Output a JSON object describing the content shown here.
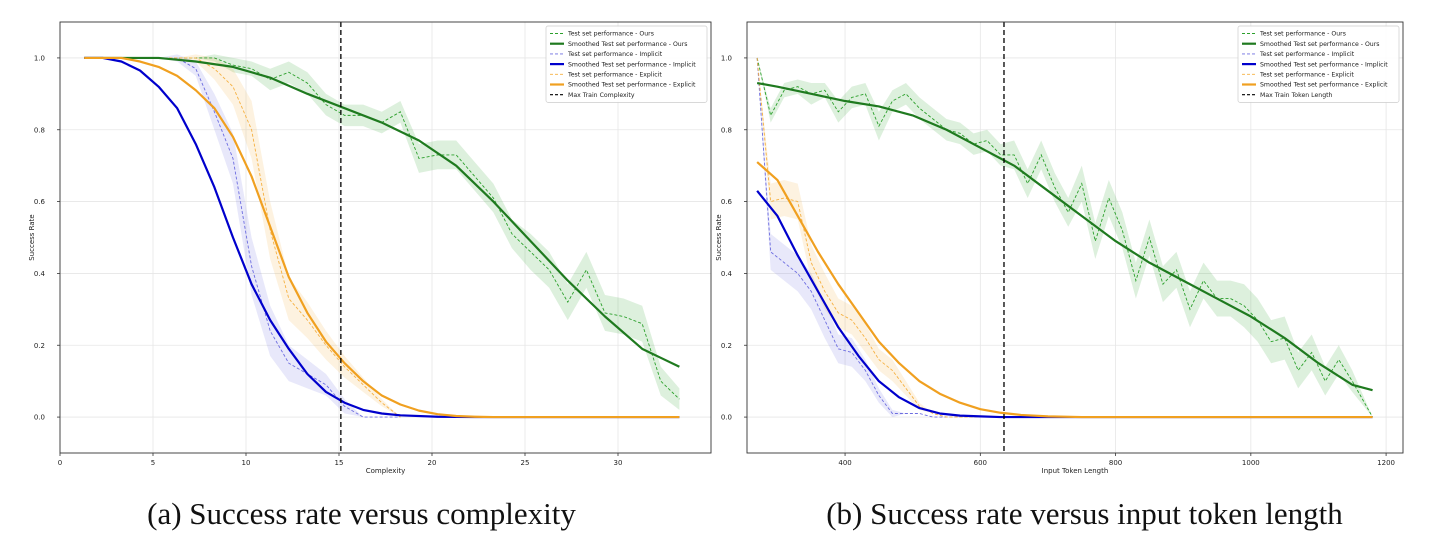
{
  "chart_data": [
    {
      "type": "line",
      "caption": "(a) Success rate versus complexity",
      "xlabel": "Complexity",
      "ylabel": "Success Rate",
      "xlim": [
        0,
        35
      ],
      "ylim": [
        -0.1,
        1.1
      ],
      "xticks": [
        0,
        5,
        10,
        15,
        20,
        25,
        30
      ],
      "yticks": [
        0.0,
        0.2,
        0.4,
        0.6,
        0.8,
        1.0
      ],
      "grid": true,
      "legend_position": "top-right",
      "vline": {
        "x": 15.1,
        "label": "Max Train Complexity",
        "color": "#000000"
      },
      "series": [
        {
          "name": "Test set performance - Ours",
          "style": "raw",
          "color": "#2ca02c",
          "x": [
            1.3,
            2.3,
            3.3,
            4.3,
            5.3,
            6.3,
            7.3,
            8.3,
            9.3,
            10.3,
            11.3,
            12.3,
            13.3,
            14.3,
            15.3,
            16.3,
            17.3,
            18.3,
            19.3,
            20.3,
            21.3,
            22.3,
            23.3,
            24.3,
            25.3,
            26.3,
            27.3,
            28.3,
            29.3,
            30.3,
            31.3,
            32.3,
            33.3
          ],
          "y": [
            1.0,
            1.0,
            1.0,
            1.0,
            1.0,
            1.0,
            1.0,
            1.0,
            0.98,
            0.97,
            0.94,
            0.96,
            0.93,
            0.87,
            0.84,
            0.84,
            0.82,
            0.85,
            0.72,
            0.73,
            0.73,
            0.67,
            0.61,
            0.51,
            0.46,
            0.41,
            0.32,
            0.41,
            0.29,
            0.28,
            0.26,
            0.1,
            0.05
          ],
          "band": [
            0.0,
            0.0,
            0.0,
            0.0,
            0.0,
            0.0,
            0.0,
            0.01,
            0.02,
            0.02,
            0.03,
            0.03,
            0.03,
            0.03,
            0.03,
            0.03,
            0.03,
            0.03,
            0.04,
            0.04,
            0.04,
            0.04,
            0.04,
            0.04,
            0.05,
            0.05,
            0.05,
            0.05,
            0.05,
            0.05,
            0.05,
            0.04,
            0.03
          ]
        },
        {
          "name": "Smoothed Test set performance - Ours",
          "style": "smooth",
          "color": "#1f7a1f",
          "x": [
            1.3,
            3.3,
            5.3,
            7.3,
            9.3,
            11.3,
            13.3,
            15.3,
            17.3,
            19.3,
            21.3,
            23.3,
            25.3,
            27.3,
            29.3,
            31.3,
            32.3,
            33.3
          ],
          "y": [
            1.0,
            1.0,
            1.0,
            0.99,
            0.975,
            0.945,
            0.9,
            0.86,
            0.82,
            0.77,
            0.7,
            0.6,
            0.49,
            0.38,
            0.28,
            0.19,
            0.165,
            0.14
          ]
        },
        {
          "name": "Test set performance - Implicit",
          "style": "raw",
          "color": "#6d6de0",
          "x": [
            1.3,
            2.3,
            3.3,
            4.3,
            5.3,
            6.3,
            7.3,
            8.3,
            9.3,
            10.3,
            11.3,
            12.3,
            13.3,
            14.3,
            15.3,
            16.3,
            17.3,
            18.3
          ],
          "y": [
            1.0,
            1.0,
            1.0,
            1.0,
            1.0,
            1.0,
            0.97,
            0.85,
            0.72,
            0.42,
            0.24,
            0.15,
            0.12,
            0.09,
            0.03,
            0.0,
            0.0,
            0.0
          ],
          "band": [
            0.0,
            0.0,
            0.0,
            0.0,
            0.0,
            0.01,
            0.02,
            0.05,
            0.07,
            0.08,
            0.07,
            0.05,
            0.04,
            0.03,
            0.02,
            0.0,
            0.0,
            0.0
          ]
        },
        {
          "name": "Smoothed Test set performance - Implicit",
          "style": "smooth",
          "color": "#0000cc",
          "x": [
            1.3,
            2.3,
            3.3,
            4.3,
            5.3,
            6.3,
            7.3,
            8.3,
            9.3,
            10.3,
            11.3,
            12.3,
            13.3,
            14.3,
            15.3,
            16.3,
            17.3,
            18.3,
            20.3,
            22.3,
            25.3,
            33.3
          ],
          "y": [
            1.0,
            1.0,
            0.99,
            0.965,
            0.92,
            0.86,
            0.76,
            0.64,
            0.5,
            0.37,
            0.27,
            0.19,
            0.12,
            0.07,
            0.04,
            0.02,
            0.01,
            0.005,
            0.001,
            0.0,
            0.0,
            0.0
          ]
        },
        {
          "name": "Test set performance - Explicit",
          "style": "raw",
          "color": "#f5b041",
          "x": [
            1.3,
            2.3,
            3.3,
            4.3,
            5.3,
            6.3,
            7.3,
            8.3,
            9.3,
            10.3,
            11.3,
            12.3,
            13.3,
            14.3,
            15.3,
            16.3,
            17.3,
            18.3
          ],
          "y": [
            1.0,
            1.0,
            1.0,
            1.0,
            1.0,
            1.0,
            1.0,
            0.97,
            0.92,
            0.8,
            0.52,
            0.33,
            0.27,
            0.2,
            0.14,
            0.09,
            0.04,
            0.0
          ],
          "band": [
            0.0,
            0.0,
            0.0,
            0.0,
            0.0,
            0.0,
            0.01,
            0.03,
            0.05,
            0.08,
            0.08,
            0.06,
            0.05,
            0.04,
            0.03,
            0.02,
            0.01,
            0.0
          ]
        },
        {
          "name": "Smoothed Test set performance - Explicit",
          "style": "smooth",
          "color": "#f0a020",
          "x": [
            1.3,
            2.3,
            3.3,
            4.3,
            5.3,
            6.3,
            7.3,
            8.3,
            9.3,
            10.3,
            11.3,
            12.3,
            13.3,
            14.3,
            15.3,
            16.3,
            17.3,
            18.3,
            19.3,
            20.3,
            21.3,
            22.3,
            23.3,
            25.3,
            33.3
          ],
          "y": [
            1.0,
            1.0,
            1.0,
            0.99,
            0.975,
            0.95,
            0.91,
            0.86,
            0.78,
            0.67,
            0.53,
            0.39,
            0.29,
            0.21,
            0.15,
            0.1,
            0.06,
            0.035,
            0.018,
            0.008,
            0.003,
            0.001,
            0.0,
            0.0,
            0.0
          ]
        }
      ]
    },
    {
      "type": "line",
      "caption": "(b) Success rate versus input token length",
      "xlabel": "Input Token Length",
      "ylabel": "Success Rate",
      "xlim": [
        255,
        1225
      ],
      "ylim": [
        -0.1,
        1.1
      ],
      "xticks": [
        400,
        600,
        800,
        1000,
        1200
      ],
      "yticks": [
        0.0,
        0.2,
        0.4,
        0.6,
        0.8,
        1.0
      ],
      "grid": true,
      "legend_position": "top-right",
      "vline": {
        "x": 635,
        "label": "Max Train Token Length",
        "color": "#000000"
      },
      "series": [
        {
          "name": "Test set performance - Ours",
          "style": "raw",
          "color": "#2ca02c",
          "x": [
            270,
            290,
            310,
            330,
            350,
            370,
            390,
            410,
            430,
            450,
            470,
            490,
            510,
            530,
            550,
            570,
            590,
            610,
            630,
            650,
            670,
            690,
            710,
            730,
            750,
            770,
            790,
            810,
            830,
            850,
            870,
            890,
            910,
            930,
            950,
            970,
            990,
            1010,
            1030,
            1050,
            1070,
            1090,
            1110,
            1130,
            1150,
            1180
          ],
          "y": [
            1.0,
            0.84,
            0.91,
            0.92,
            0.9,
            0.91,
            0.85,
            0.89,
            0.9,
            0.81,
            0.88,
            0.9,
            0.86,
            0.83,
            0.8,
            0.79,
            0.76,
            0.77,
            0.73,
            0.73,
            0.65,
            0.73,
            0.64,
            0.57,
            0.65,
            0.49,
            0.61,
            0.52,
            0.38,
            0.5,
            0.37,
            0.41,
            0.3,
            0.38,
            0.33,
            0.33,
            0.31,
            0.27,
            0.21,
            0.22,
            0.13,
            0.18,
            0.1,
            0.16,
            0.1,
            0.0
          ],
          "band": [
            0.0,
            0.02,
            0.02,
            0.02,
            0.03,
            0.02,
            0.03,
            0.03,
            0.03,
            0.04,
            0.03,
            0.03,
            0.03,
            0.03,
            0.03,
            0.03,
            0.03,
            0.03,
            0.03,
            0.04,
            0.04,
            0.04,
            0.04,
            0.04,
            0.05,
            0.05,
            0.05,
            0.05,
            0.05,
            0.05,
            0.05,
            0.05,
            0.05,
            0.05,
            0.05,
            0.05,
            0.06,
            0.06,
            0.06,
            0.06,
            0.05,
            0.05,
            0.04,
            0.04,
            0.03,
            0.0
          ]
        },
        {
          "name": "Smoothed Test set performance - Ours",
          "style": "smooth",
          "color": "#1f7a1f",
          "x": [
            270,
            300,
            350,
            400,
            450,
            500,
            550,
            600,
            630,
            650,
            700,
            750,
            800,
            850,
            900,
            950,
            1000,
            1050,
            1100,
            1150,
            1180
          ],
          "y": [
            0.93,
            0.92,
            0.9,
            0.88,
            0.865,
            0.84,
            0.8,
            0.75,
            0.72,
            0.7,
            0.63,
            0.56,
            0.49,
            0.43,
            0.38,
            0.33,
            0.28,
            0.22,
            0.15,
            0.09,
            0.075
          ]
        },
        {
          "name": "Test set performance - Implicit",
          "style": "raw",
          "color": "#6d6de0",
          "x": [
            270,
            290,
            310,
            330,
            350,
            370,
            390,
            410,
            430,
            450,
            470,
            490,
            510,
            530,
            550,
            570,
            590,
            610,
            630,
            650,
            700,
            800,
            900,
            1000,
            1100,
            1180
          ],
          "y": [
            1.0,
            0.46,
            0.43,
            0.4,
            0.35,
            0.27,
            0.19,
            0.18,
            0.13,
            0.06,
            0.01,
            0.01,
            0.01,
            0.0,
            0.0,
            0.0,
            0.0,
            0.0,
            0.0,
            0.0,
            0.0,
            0.0,
            0.0,
            0.0,
            0.0,
            0.0
          ],
          "band": [
            0.0,
            0.05,
            0.05,
            0.05,
            0.05,
            0.05,
            0.04,
            0.04,
            0.03,
            0.02,
            0.01,
            0.0,
            0.0,
            0.0,
            0.0,
            0.0,
            0.0,
            0.0,
            0.0,
            0.0,
            0.0,
            0.0,
            0.0,
            0.0,
            0.0,
            0.0
          ]
        },
        {
          "name": "Smoothed Test set performance - Implicit",
          "style": "smooth",
          "color": "#0000cc",
          "x": [
            270,
            300,
            330,
            360,
            390,
            420,
            450,
            480,
            510,
            540,
            570,
            600,
            630,
            660,
            700,
            800,
            1000,
            1180
          ],
          "y": [
            0.63,
            0.56,
            0.45,
            0.35,
            0.25,
            0.17,
            0.1,
            0.055,
            0.025,
            0.01,
            0.004,
            0.002,
            0.0,
            0.0,
            0.0,
            0.0,
            0.0,
            0.0
          ]
        },
        {
          "name": "Test set performance - Explicit",
          "style": "raw",
          "color": "#f5b041",
          "x": [
            270,
            290,
            310,
            330,
            350,
            370,
            390,
            410,
            430,
            450,
            470,
            490,
            510,
            530,
            550,
            570,
            590,
            610,
            630,
            650,
            700,
            800,
            900,
            1000,
            1100,
            1180
          ],
          "y": [
            1.0,
            0.6,
            0.61,
            0.6,
            0.43,
            0.35,
            0.29,
            0.27,
            0.22,
            0.16,
            0.13,
            0.08,
            0.03,
            0.01,
            0.0,
            0.0,
            0.0,
            0.0,
            0.0,
            0.0,
            0.0,
            0.0,
            0.0,
            0.0,
            0.0,
            0.0
          ],
          "band": [
            0.0,
            0.05,
            0.05,
            0.05,
            0.05,
            0.05,
            0.04,
            0.04,
            0.04,
            0.03,
            0.03,
            0.02,
            0.01,
            0.0,
            0.0,
            0.0,
            0.0,
            0.0,
            0.0,
            0.0,
            0.0,
            0.0,
            0.0,
            0.0,
            0.0,
            0.0
          ]
        },
        {
          "name": "Smoothed Test set performance - Explicit",
          "style": "smooth",
          "color": "#f0a020",
          "x": [
            270,
            300,
            330,
            360,
            390,
            420,
            450,
            480,
            510,
            540,
            570,
            600,
            630,
            660,
            700,
            750,
            800,
            1000,
            1180
          ],
          "y": [
            0.71,
            0.66,
            0.56,
            0.46,
            0.37,
            0.29,
            0.21,
            0.15,
            0.1,
            0.065,
            0.04,
            0.022,
            0.012,
            0.006,
            0.002,
            0.0,
            0.0,
            0.0,
            0.0
          ]
        }
      ]
    }
  ]
}
